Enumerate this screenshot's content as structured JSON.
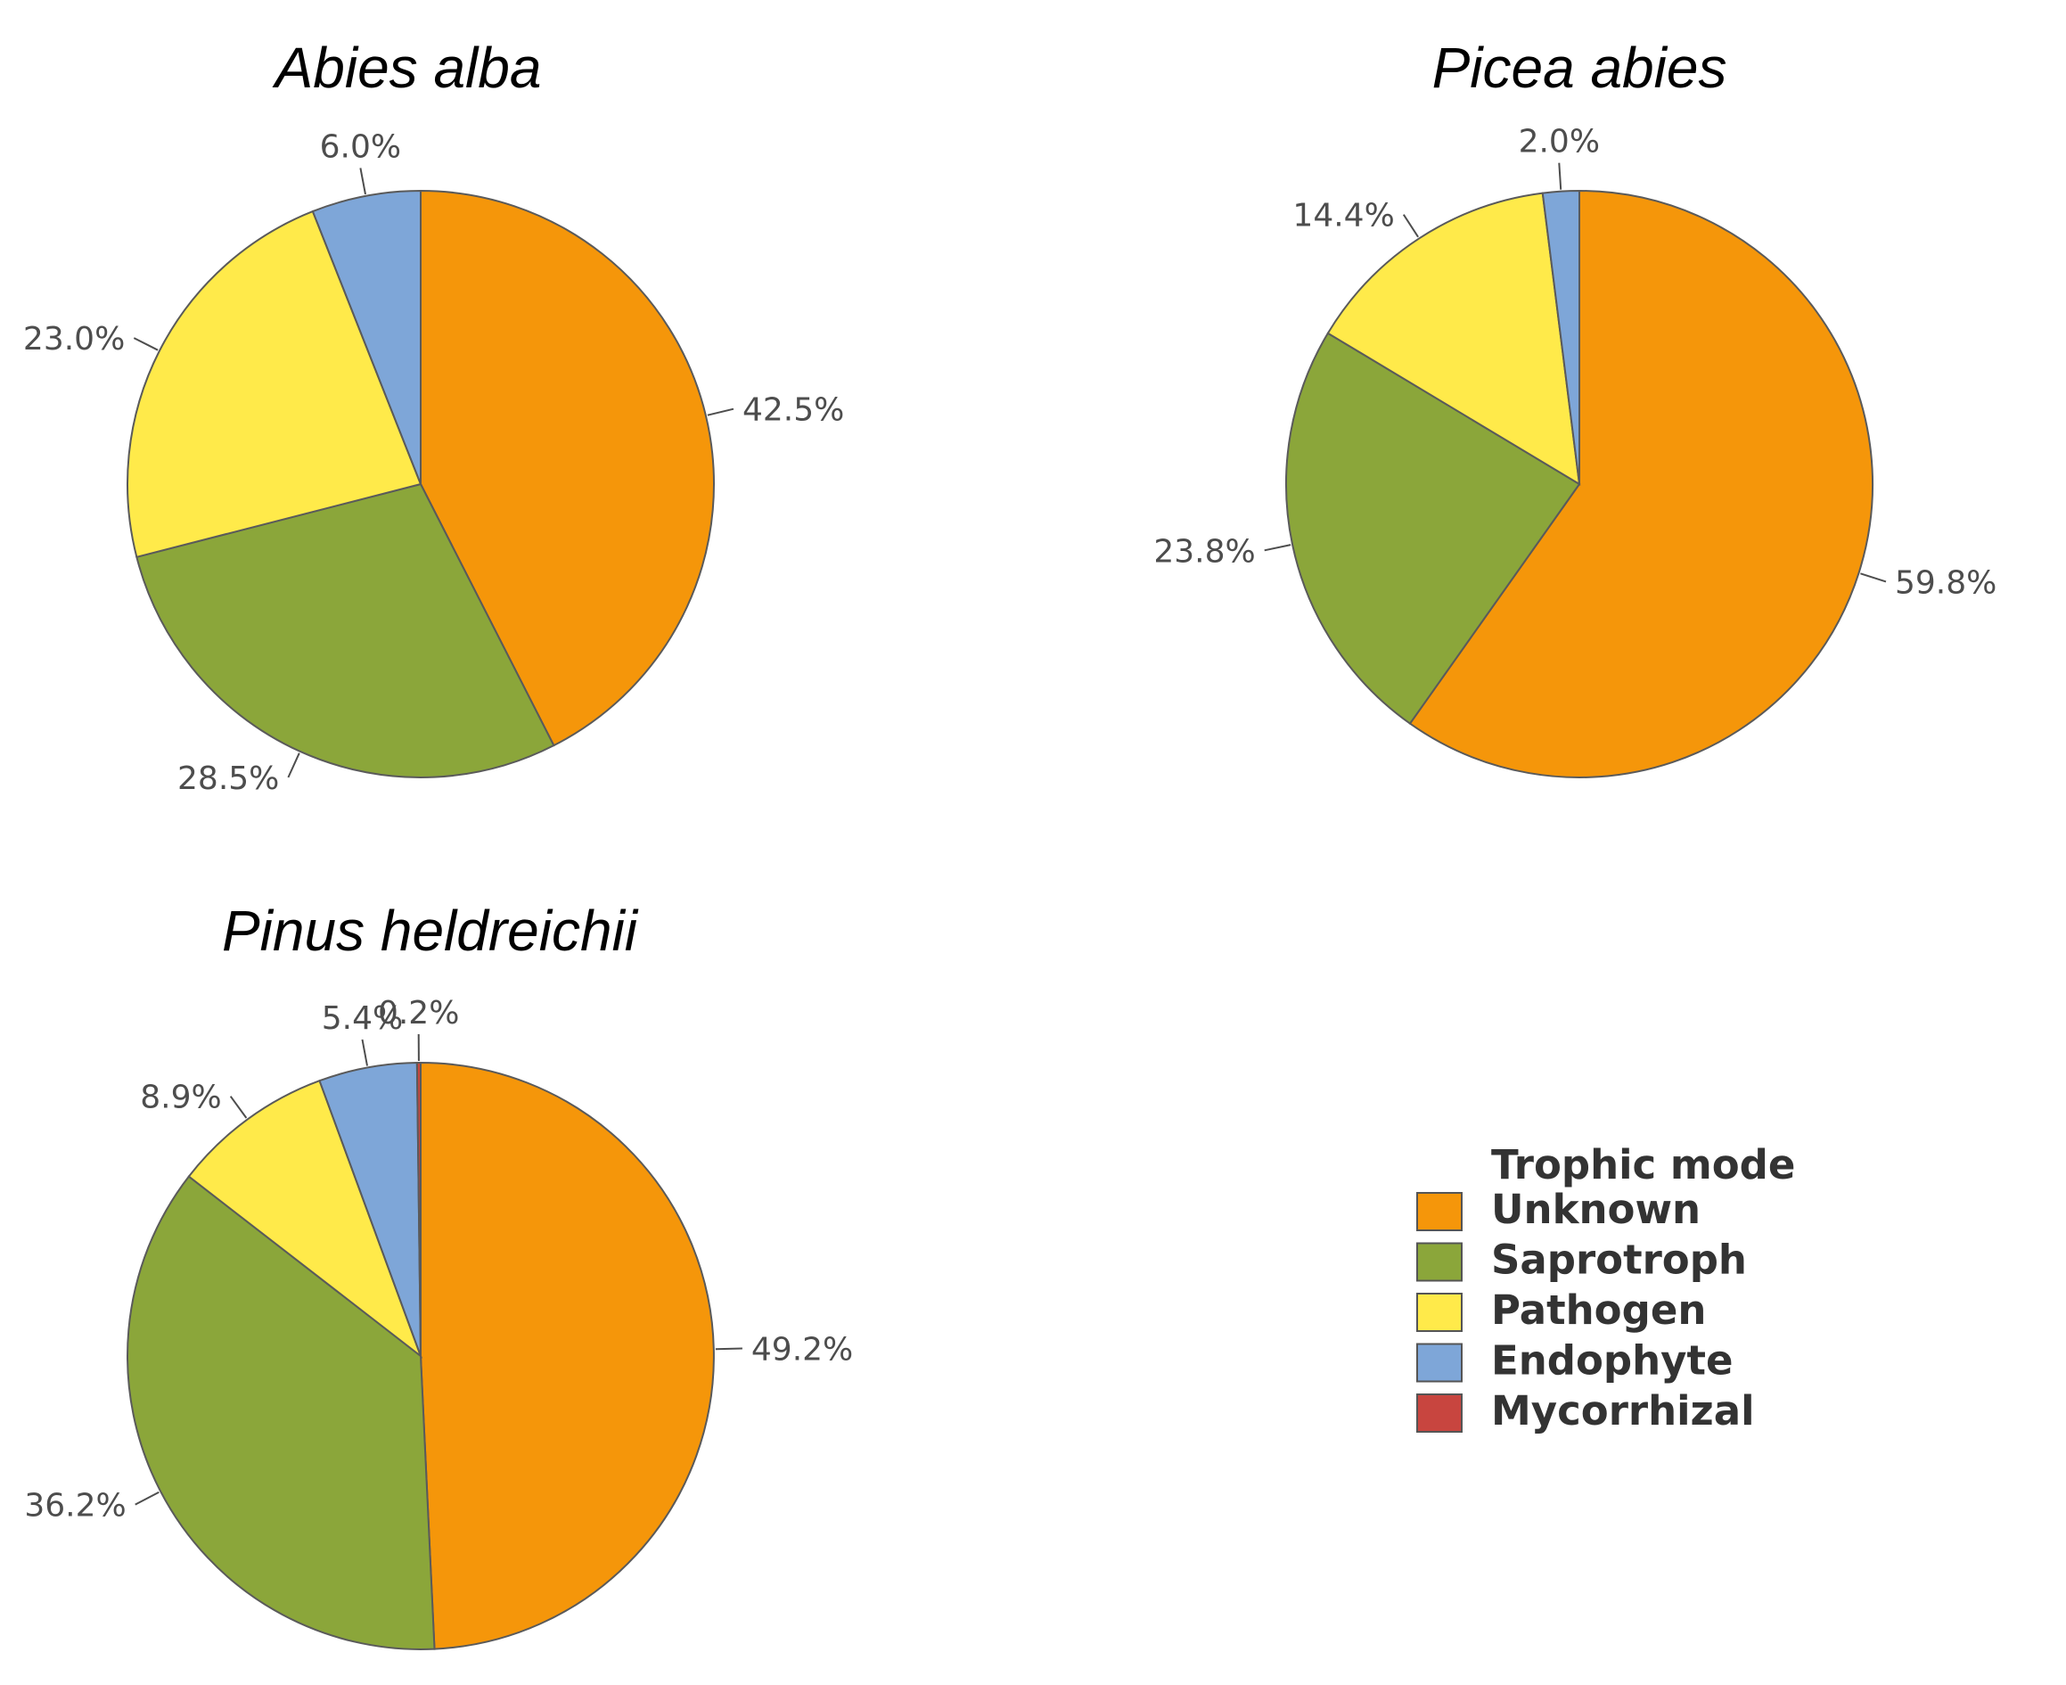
{
  "chart_data": [
    {
      "type": "pie",
      "title": "Abies alba",
      "slices": [
        {
          "name": "Unknown",
          "value": 42.5,
          "label": "42.5%"
        },
        {
          "name": "Saprotroph",
          "value": 28.5,
          "label": "28.5%"
        },
        {
          "name": "Pathogen",
          "value": 23.0,
          "label": "23.0%"
        },
        {
          "name": "Endophyte",
          "value": 6.0,
          "label": "6.0%"
        }
      ]
    },
    {
      "type": "pie",
      "title": "Picea abies",
      "slices": [
        {
          "name": "Unknown",
          "value": 59.8,
          "label": "59.8%"
        },
        {
          "name": "Saprotroph",
          "value": 23.8,
          "label": "23.8%"
        },
        {
          "name": "Pathogen",
          "value": 14.4,
          "label": "14.4%"
        },
        {
          "name": "Endophyte",
          "value": 2.0,
          "label": "2.0%"
        }
      ]
    },
    {
      "type": "pie",
      "title": "Pinus heldreichii",
      "slices": [
        {
          "name": "Unknown",
          "value": 49.2,
          "label": "49.2%"
        },
        {
          "name": "Saprotroph",
          "value": 36.2,
          "label": "36.2%"
        },
        {
          "name": "Pathogen",
          "value": 8.9,
          "label": "8.9%"
        },
        {
          "name": "Endophyte",
          "value": 5.4,
          "label": "5.4%"
        },
        {
          "name": "Mycorrhizal",
          "value": 0.2,
          "label": "0.2%"
        }
      ]
    }
  ],
  "legend": {
    "title": "Trophic mode",
    "placement": "bottom-right",
    "items": [
      {
        "name": "Unknown",
        "color": "#f5960a"
      },
      {
        "name": "Saprotroph",
        "color": "#8ba63a"
      },
      {
        "name": "Pathogen",
        "color": "#ffea4a"
      },
      {
        "name": "Endophyte",
        "color": "#7ea6d8"
      },
      {
        "name": "Mycorrhizal",
        "color": "#c8453f"
      }
    ]
  }
}
